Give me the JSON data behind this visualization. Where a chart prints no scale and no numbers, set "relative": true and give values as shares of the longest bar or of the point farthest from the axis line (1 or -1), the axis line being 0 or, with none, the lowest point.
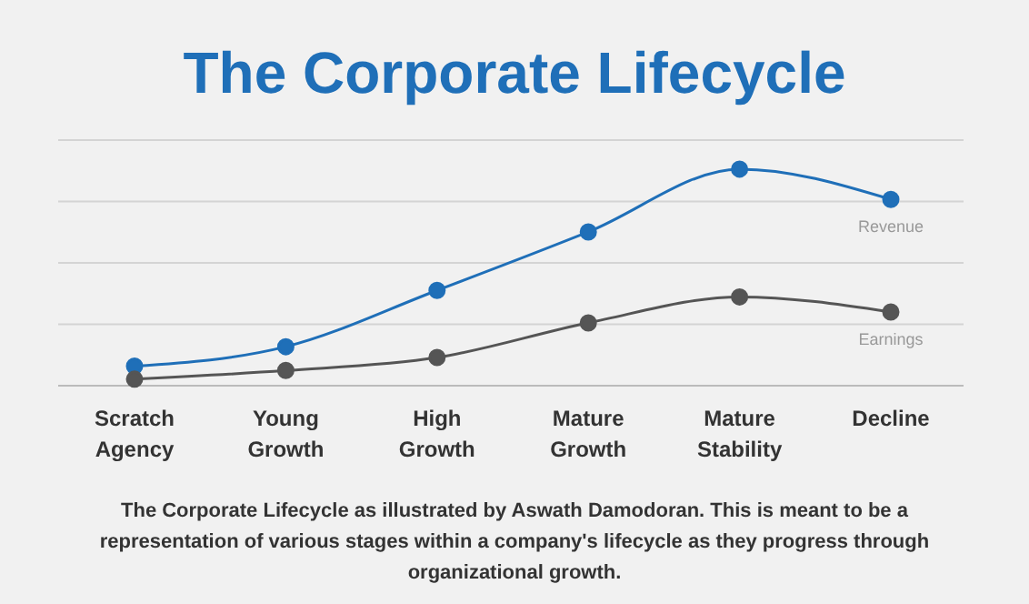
{
  "chart_data": {
    "type": "line",
    "title": "The Corporate Lifecycle",
    "relative": true,
    "grid": "y",
    "marker": "circle",
    "line_style": "solid",
    "legend": false,
    "categories": [
      "Scratch Agency",
      "Young Growth",
      "High Growth",
      "Mature Growth",
      "Mature Stability",
      "Decline"
    ],
    "series": [
      {
        "name": "Revenue",
        "color": "#1f6fb8",
        "values": [
          0.09,
          0.18,
          0.44,
          0.71,
          1,
          0.86
        ]
      },
      {
        "name": "Earnings",
        "color": "#555555",
        "values": [
          0.03,
          0.07,
          0.13,
          0.29,
          0.41,
          0.34
        ]
      }
    ],
    "annotations": [
      "The Corporate Lifecycle as illustrated by Aswath Damodoran. This is meant to be a representation of various stages within a company's lifecycle as they progress through organizational growth."
    ]
  }
}
